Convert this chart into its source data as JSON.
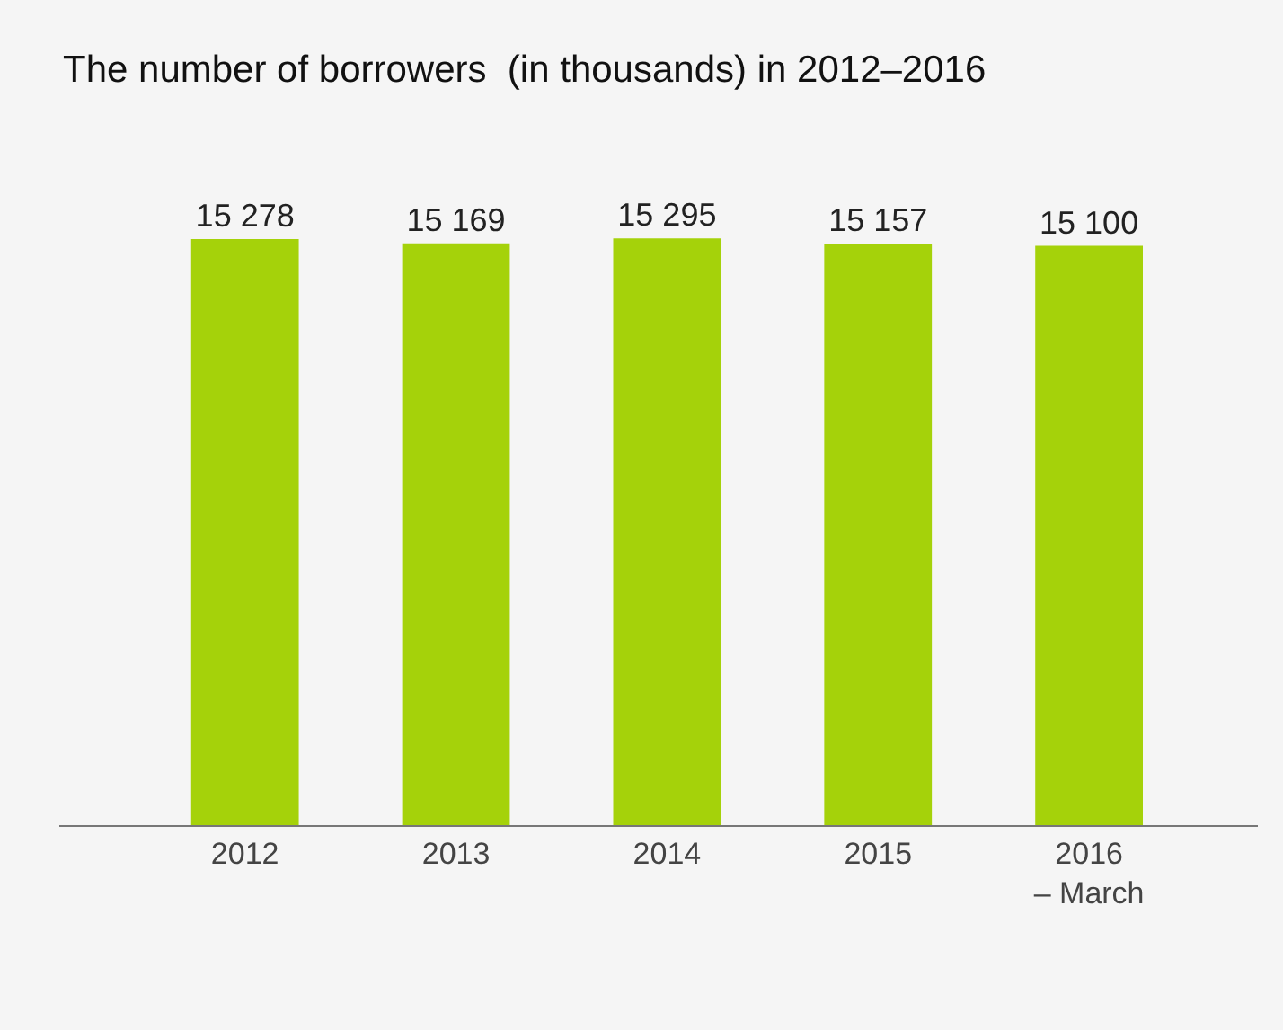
{
  "chart_data": {
    "type": "bar",
    "title": "The number of borrowers  (in thousands) in 2012–2016",
    "categories": [
      "2012",
      "2013",
      "2014",
      "2015",
      "2016\n– March"
    ],
    "values": [
      15278,
      15169,
      15295,
      15157,
      15100
    ],
    "value_labels": [
      "15 278",
      "15 169",
      "15 295",
      "15 157",
      "15 100"
    ],
    "color": "#a5d20a",
    "grid": false,
    "legend": false
  }
}
